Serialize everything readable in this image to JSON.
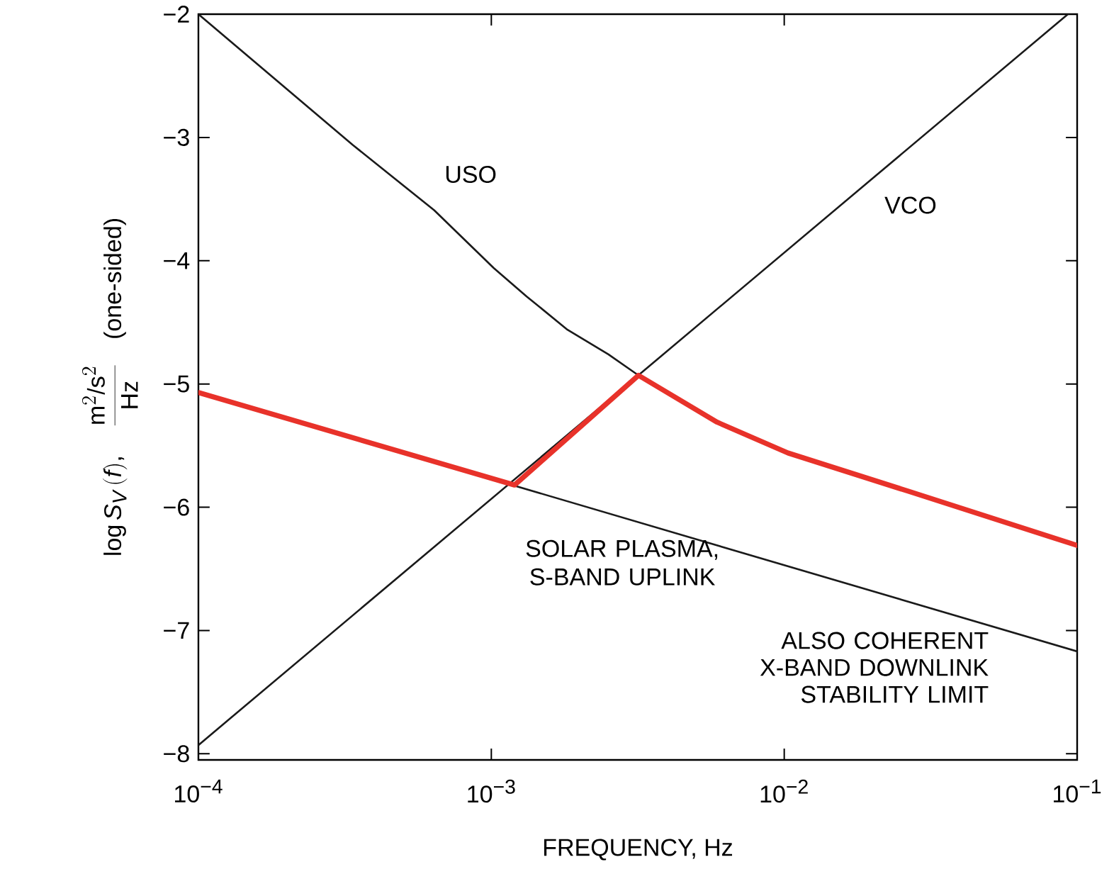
{
  "chart_data": {
    "type": "line",
    "xlabel": "FREQUENCY, Hz",
    "ylabel": "\\log S_{V}\\,(f),\\quad \\frac{\\mathrm{m}^{2}/\\mathrm{s}^{2}}{\\mathrm{Hz}}\\quad \\mbox{(one-sided)}",
    "log": "x",
    "xlim": [
      0.0001,
      0.1
    ],
    "ylim": [
      -8.05,
      -2
    ],
    "xticks": [
      {
        "value": 0.0001,
        "label": "10$^{−4}$"
      },
      {
        "value": 0.001,
        "label": "10$^{−3}$"
      },
      {
        "value": 0.01,
        "label": "10$^{−2}$"
      },
      {
        "value": 0.1,
        "label": "10$^{−1}$"
      }
    ],
    "yticks": [
      {
        "value": -8,
        "label": "−8"
      },
      {
        "value": -7,
        "label": "−7"
      },
      {
        "value": -6,
        "label": "−6"
      },
      {
        "value": -5,
        "label": "−5"
      },
      {
        "value": -4,
        "label": "−4"
      },
      {
        "value": -3,
        "label": "−3"
      },
      {
        "value": -2,
        "label": "−2"
      }
    ],
    "grid": false,
    "series": [
      {
        "name": "USO",
        "color": "#1a1a1a",
        "x": [
          0.0001,
          0.000336,
          0.000638,
          0.00102,
          0.00132,
          0.00182,
          0.00251,
          0.00318
        ],
        "values": [
          -2,
          -3.06,
          -3.59,
          -4.06,
          -4.29,
          -4.56,
          -4.76,
          -4.93
        ]
      },
      {
        "name": "VCO",
        "color": "#1a1a1a",
        "x": [
          0.0001,
          0.093
        ],
        "values": [
          -7.93,
          -2
        ]
      },
      {
        "name": "SOLAR PLASMA, S-BAND UPLINK",
        "color": "#1a1a1a",
        "x": [
          0.0001,
          0.1
        ],
        "values": [
          -5.07,
          -7.17
        ]
      },
      {
        "color": "#e8322a",
        "x": [
          0.0001,
          0.0012,
          0.00318,
          0.0059,
          0.0103,
          0.0265,
          0.1
        ],
        "values": [
          -5.07,
          -5.82,
          -4.93,
          -5.31,
          -5.56,
          -5.87,
          -6.31
        ]
      }
    ],
    "annotations": [
      "ALSO COHERENT X-BAND DOWNLINK STABILITY LIMIT"
    ]
  }
}
